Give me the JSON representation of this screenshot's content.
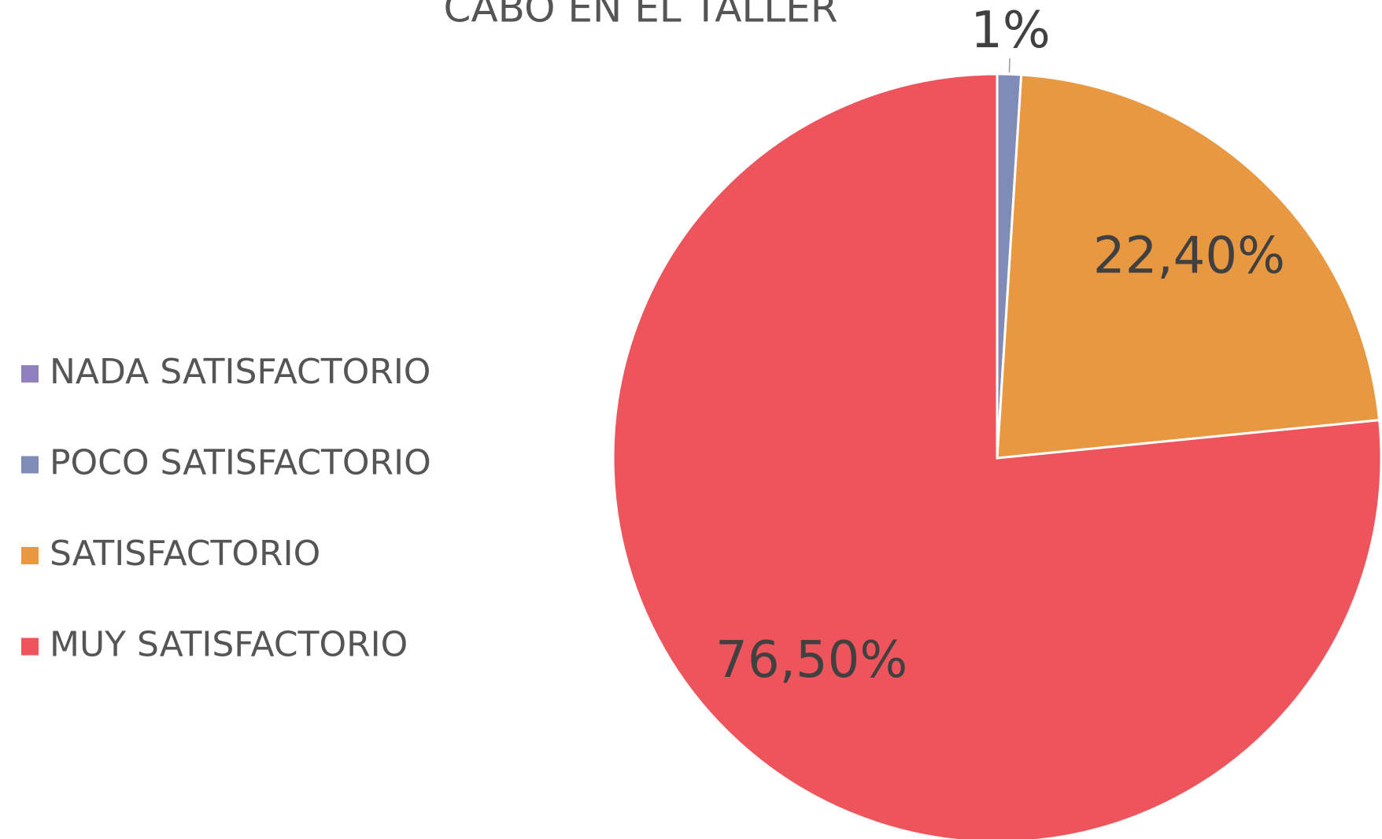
{
  "chart_data": {
    "type": "pie",
    "title": "CABO EN EL TALLER",
    "categories": [
      "NADA SATISFACTORIO",
      "POCO SATISFACTORIO",
      "SATISFACTORIO",
      "MUY SATISFACTORIO"
    ],
    "values": [
      0,
      1,
      22.4,
      76.5
    ],
    "value_labels": [
      null,
      "1%",
      "22,40%",
      "76,50%"
    ],
    "colors": [
      "#9180c0",
      "#7f8cb8",
      "#e89840",
      "#ee545c"
    ],
    "legend": "left"
  }
}
